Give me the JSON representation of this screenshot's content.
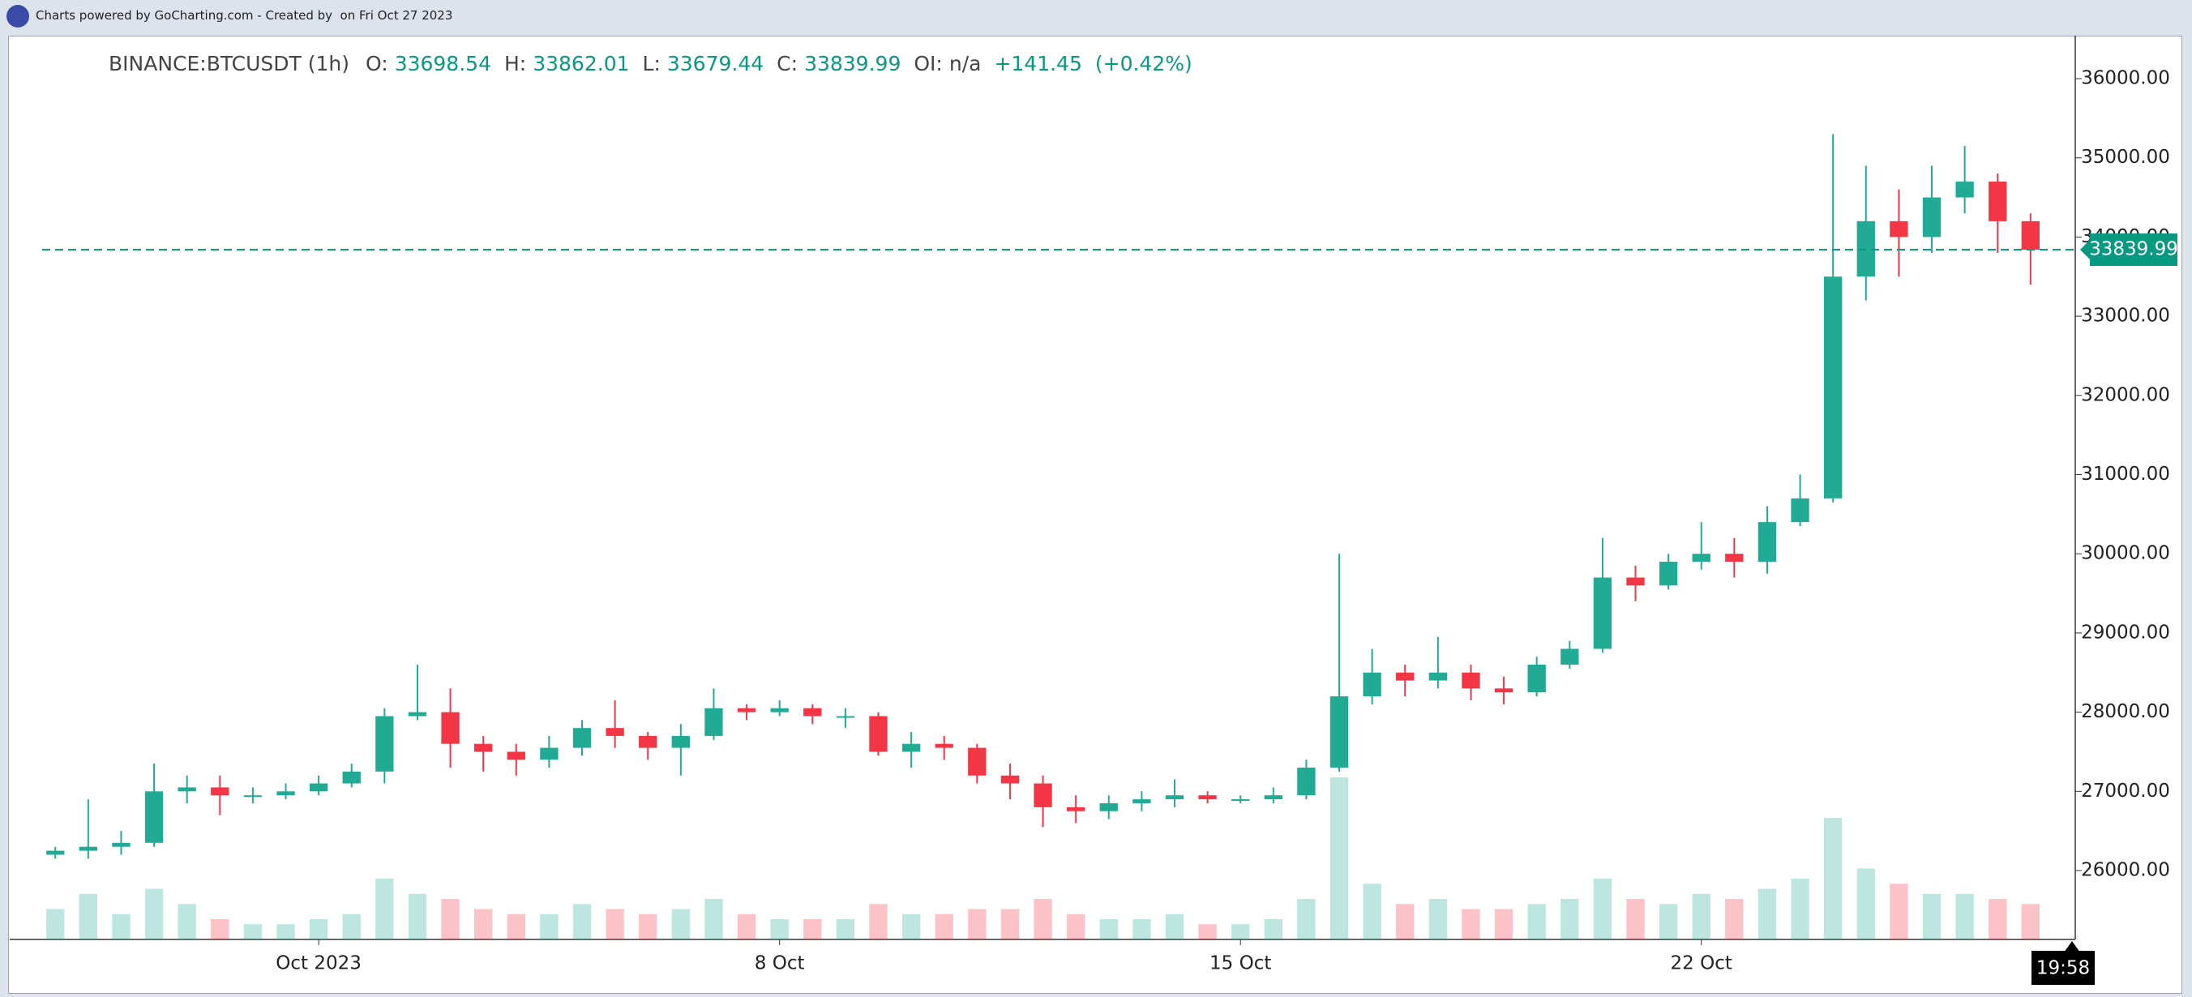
{
  "branding": "Charts powered by GoCharting.com - Created by  on Fri Oct 27 2023",
  "chart_data": {
    "type": "candlestick",
    "legend": {
      "symbol": "BINANCE:BTCUSDT (1h)",
      "open_label": "O:",
      "open": 33698.54,
      "high_label": "H:",
      "high": 33862.01,
      "low_label": "L:",
      "low": 33679.44,
      "close_label": "C:",
      "close": 33839.99,
      "oi_label": "OI:",
      "oi": "n/a",
      "change": "+141.45",
      "change_pct": "(+0.42%)"
    },
    "time_label": "19:58",
    "up_color": "#22ab94",
    "down_color": "#f23645",
    "x": [
      -3,
      -2.5,
      -2,
      -1.5,
      -1,
      -0.5,
      0,
      0.5,
      1,
      1.5,
      2,
      2.5,
      3,
      3.5,
      4,
      4.5,
      5,
      5.5,
      6,
      6.5,
      7,
      7.5,
      8,
      8.5,
      9,
      9.5,
      10,
      10.5,
      11,
      11.5,
      12,
      12.5,
      13,
      13.5,
      14,
      14.5,
      15,
      15.5,
      16,
      16.5,
      17,
      17.5,
      18,
      18.5,
      19,
      19.5,
      20,
      20.5,
      21,
      21.5,
      22,
      22.5,
      23,
      23.5,
      24,
      24.5,
      25,
      25.5,
      26,
      26.5,
      27
    ],
    "open": [
      26200,
      26250,
      26300,
      26350,
      27000,
      27050,
      26950,
      26950,
      27000,
      27100,
      27250,
      27950,
      28000,
      27600,
      27500,
      27400,
      27550,
      27800,
      27700,
      27550,
      27700,
      28050,
      28000,
      28050,
      27950,
      27950,
      27500,
      27600,
      27550,
      27200,
      27100,
      26800,
      26750,
      26850,
      26900,
      26950,
      26900,
      26900,
      26950,
      27300,
      28200,
      28500,
      28400,
      28500,
      28300,
      28250,
      28600,
      28800,
      29700,
      29600,
      29900,
      30000,
      29900,
      30400,
      30700,
      33500,
      34200,
      34000,
      34500,
      34700,
      34200
    ],
    "high": [
      26300,
      26900,
      26500,
      27350,
      27200,
      27200,
      27050,
      27100,
      27200,
      27350,
      28050,
      28600,
      28300,
      27700,
      27600,
      27700,
      27900,
      28150,
      27750,
      27850,
      28300,
      28100,
      28150,
      28100,
      28050,
      28000,
      27750,
      27700,
      27600,
      27350,
      27200,
      26950,
      26950,
      27000,
      27150,
      27000,
      26950,
      27050,
      27400,
      30000,
      28800,
      28600,
      28950,
      28600,
      28450,
      28700,
      28900,
      30200,
      29850,
      30000,
      30400,
      30200,
      30600,
      31000,
      35300,
      34900,
      34600,
      34900,
      35150,
      34800,
      34300
    ],
    "low": [
      26150,
      26150,
      26200,
      26300,
      26850,
      26700,
      26850,
      26900,
      26950,
      27050,
      27100,
      27900,
      27300,
      27250,
      27200,
      27300,
      27450,
      27550,
      27400,
      27200,
      27650,
      27900,
      27950,
      27850,
      27800,
      27450,
      27300,
      27400,
      27100,
      26900,
      26550,
      26600,
      26650,
      26750,
      26800,
      26850,
      26850,
      26850,
      26900,
      27250,
      28100,
      28200,
      28300,
      28150,
      28100,
      28200,
      28550,
      28750,
      29400,
      29550,
      29800,
      29700,
      29750,
      30350,
      30650,
      33200,
      33500,
      33800,
      34300,
      33800,
      33400
    ],
    "close": [
      26250,
      26300,
      26350,
      27000,
      27050,
      26950,
      26950,
      27000,
      27100,
      27250,
      27950,
      28000,
      27600,
      27500,
      27400,
      27550,
      27800,
      27700,
      27550,
      27700,
      28050,
      28000,
      28050,
      27950,
      27950,
      27500,
      27600,
      27550,
      27200,
      27100,
      26800,
      26750,
      26850,
      26900,
      26950,
      26900,
      26900,
      26950,
      27300,
      28200,
      28500,
      28400,
      28500,
      28300,
      28250,
      28600,
      28800,
      29700,
      29600,
      29900,
      30000,
      29900,
      30400,
      30700,
      33500,
      34200,
      34000,
      34500,
      34700,
      34200,
      33840
    ],
    "volume": [
      30,
      45,
      25,
      50,
      35,
      20,
      15,
      15,
      20,
      25,
      60,
      45,
      40,
      30,
      25,
      25,
      35,
      30,
      25,
      30,
      40,
      25,
      20,
      20,
      20,
      35,
      25,
      25,
      30,
      30,
      40,
      25,
      20,
      20,
      25,
      15,
      15,
      20,
      40,
      160,
      55,
      35,
      40,
      30,
      30,
      35,
      40,
      60,
      40,
      35,
      45,
      40,
      50,
      60,
      120,
      70,
      55,
      45,
      45,
      40,
      35
    ],
    "xlim": [
      -3.2,
      27.63
    ],
    "xticks": [
      {
        "value": 1,
        "label": "Oct 2023"
      },
      {
        "value": 8,
        "label": "8 Oct"
      },
      {
        "value": 15,
        "label": "15 Oct"
      },
      {
        "value": 22,
        "label": "22 Oct"
      }
    ],
    "ylim": [
      25130,
      36512
    ],
    "yticks": [
      {
        "value": 26000,
        "label": "26000.00"
      },
      {
        "value": 27000,
        "label": "27000.00"
      },
      {
        "value": 28000,
        "label": "28000.00"
      },
      {
        "value": 29000,
        "label": "29000.00"
      },
      {
        "value": 30000,
        "label": "30000.00"
      },
      {
        "value": 31000,
        "label": "31000.00"
      },
      {
        "value": 32000,
        "label": "32000.00"
      },
      {
        "value": 33000,
        "label": "33000.00"
      },
      {
        "value": 34000,
        "label": "34000.00"
      },
      {
        "value": 35000,
        "label": "35000.00"
      },
      {
        "value": 36000,
        "label": "36000.00"
      }
    ]
  }
}
